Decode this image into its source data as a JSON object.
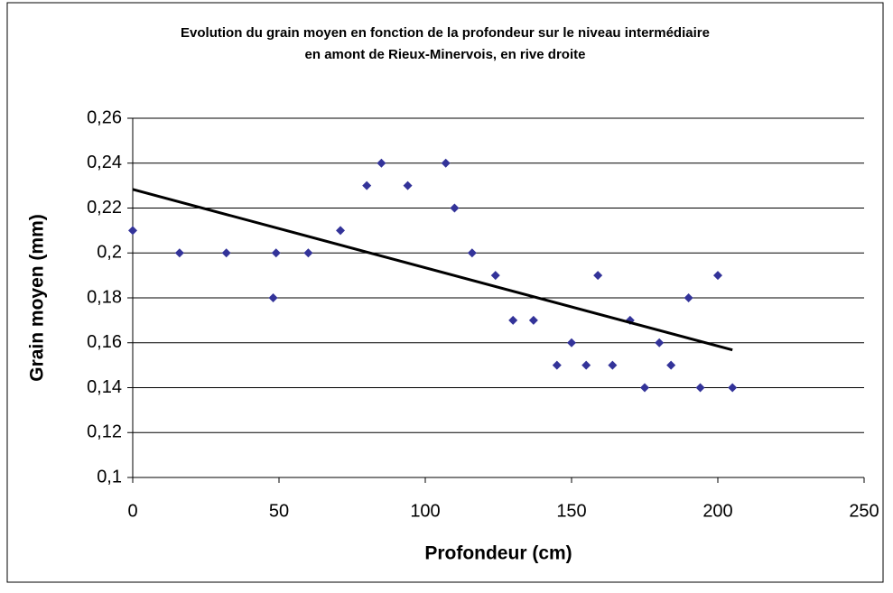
{
  "chart_data": {
    "type": "scatter",
    "title": [
      "Evolution du grain moyen en fonction de la profondeur sur le niveau intermédiaire",
      "en amont de Rieux-Minervois, en rive droite"
    ],
    "x_label": "Profondeur (cm)",
    "y_label": "Grain moyen (mm)",
    "series": [
      {
        "color": "#333399",
        "x": [
          0,
          16,
          32,
          48,
          49,
          60,
          71,
          80,
          85,
          94,
          107,
          110,
          116,
          124,
          130,
          137,
          145,
          150,
          155,
          159,
          164,
          170,
          175,
          180,
          184,
          190,
          194,
          200,
          205
        ],
        "values": [
          0.21,
          0.2,
          0.2,
          0.18,
          0.2,
          0.2,
          0.21,
          0.23,
          0.24,
          0.23,
          0.24,
          0.22,
          0.2,
          0.19,
          0.17,
          0.17,
          0.15,
          0.16,
          0.15,
          0.19,
          0.15,
          0.17,
          0.14,
          0.16,
          0.15,
          0.18,
          0.14,
          0.19,
          0.14
        ]
      }
    ],
    "trendline": {
      "color": "#000000",
      "x": [
        0,
        205
      ],
      "values": [
        0.2283,
        0.1568
      ]
    },
    "xlim": [
      0,
      250
    ],
    "xticks": [
      0,
      50,
      100,
      150,
      200,
      250
    ],
    "ylim": [
      0.1,
      0.26
    ],
    "yticks": [
      {
        "value": 0.1,
        "label": "0,1"
      },
      {
        "value": 0.12,
        "label": "0,12"
      },
      {
        "value": 0.14,
        "label": "0,14"
      },
      {
        "value": 0.16,
        "label": "0,16"
      },
      {
        "value": 0.18,
        "label": "0,18"
      },
      {
        "value": 0.2,
        "label": "0,2"
      },
      {
        "value": 0.22,
        "label": "0,22"
      },
      {
        "value": 0.24,
        "label": "0,24"
      },
      {
        "value": 0.26,
        "label": "0,26"
      }
    ],
    "grid": true
  }
}
